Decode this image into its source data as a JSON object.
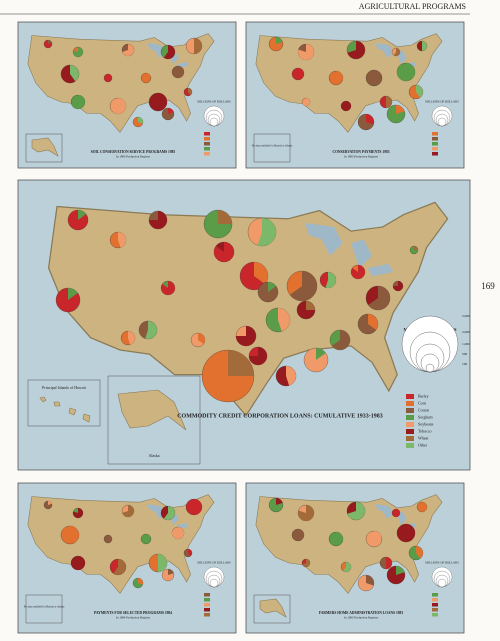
{
  "header": {
    "title": "AGRICULTURAL PROGRAMS",
    "page_number": "169"
  },
  "maps": [
    {
      "title": "SOIL CONSERVATION SERVICE PROGRAMS 1983",
      "subtitle": "In 1983 Production Regions",
      "legend_title": "MILLIONS OF DOLLARS"
    },
    {
      "title": "CONSERVATION PAYMENTS 1983",
      "subtitle": "In 1983 Production Regions",
      "legend_title": "MILLIONS OF DOLLARS",
      "note": "No data available for Hawaii or Alaska"
    },
    {
      "title": "COMMODITY CREDIT CORPORATION LOANS: CUMULATIVE 1933-1983",
      "legend_title": "MILLIONS OF DOLLARS",
      "legend_items": [
        "Barley",
        "Corn",
        "Cotton",
        "Sorghum",
        "Soybeans",
        "Tobacco",
        "Wheat",
        "Other"
      ],
      "scale_labels": [
        "5,000",
        "2,000",
        "1,000",
        "500",
        "100"
      ],
      "insets": [
        "Principal Islands of Hawaii",
        "Alaska"
      ]
    },
    {
      "title": "PAYMENTS FOR SELECTED PROGRAMS 1984",
      "subtitle": "In 1984 Production Regions",
      "legend_title": "MILLIONS OF DOLLARS",
      "note": "No data available for Hawaii or Alaska"
    },
    {
      "title": "FARMERS HOME ADMINISTRATION LOANS 1983",
      "subtitle": "In 1983 Production Regions",
      "legend_title": "MILLIONS OF DOLLARS"
    }
  ]
}
